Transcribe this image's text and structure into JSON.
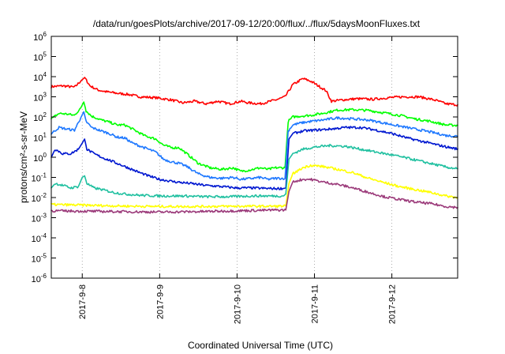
{
  "chart_data": {
    "type": "line",
    "title": "/data/run/goesPlots/archive/2017-09-12/20:00/flux/../flux/5daysMoonFluxes.txt",
    "xlabel": "Coordinated Universal Time (UTC)",
    "ylabel": "protons/cm²-s-sr-MeV",
    "x_range_days": [
      6.6,
      11.85
    ],
    "x_ticks": [
      {
        "value": 7,
        "label": "2017-9-8"
      },
      {
        "value": 8,
        "label": "2017-9-9"
      },
      {
        "value": 9,
        "label": "2017-9-10"
      },
      {
        "value": 10,
        "label": "2017-9-11"
      },
      {
        "value": 11,
        "label": "2017-9-12"
      }
    ],
    "y_scale": "log",
    "ylim_exp": [
      -6,
      6
    ],
    "y_ticks": [
      "10^-6",
      "10^-5",
      "10^-4",
      "10^-3",
      "10^-2",
      "10^-1",
      "10^0",
      "10^1",
      "10^2",
      "10^3",
      "10^4",
      "10^5",
      "10^6"
    ],
    "grid": true,
    "series": [
      {
        "color": "#ff0000",
        "points": [
          [
            6.6,
            3200.0
          ],
          [
            6.75,
            3500.0
          ],
          [
            6.9,
            3000.0
          ],
          [
            6.98,
            6000.0
          ],
          [
            7.03,
            9000.0
          ],
          [
            7.1,
            3500.0
          ],
          [
            7.2,
            2200.0
          ],
          [
            7.3,
            1800.0
          ],
          [
            7.45,
            1500.0
          ],
          [
            7.6,
            1300.0
          ],
          [
            7.75,
            1000.0
          ],
          [
            7.95,
            900.0
          ],
          [
            8.15,
            700.0
          ],
          [
            8.3,
            500.0
          ],
          [
            8.45,
            600.0
          ],
          [
            8.6,
            450.0
          ],
          [
            8.75,
            600.0
          ],
          [
            8.9,
            450.0
          ],
          [
            9.05,
            600.0
          ],
          [
            9.15,
            500.0
          ],
          [
            9.3,
            450.0
          ],
          [
            9.5,
            700.0
          ],
          [
            9.62,
            1000.0
          ],
          [
            9.72,
            4000.0
          ],
          [
            9.85,
            8000.0
          ],
          [
            9.95,
            6000.0
          ],
          [
            10.05,
            3500.0
          ],
          [
            10.15,
            2000.0
          ],
          [
            10.22,
            600.0
          ],
          [
            10.35,
            700.0
          ],
          [
            10.55,
            800.0
          ],
          [
            10.75,
            750.0
          ],
          [
            10.95,
            900.0
          ],
          [
            11.15,
            1000.0
          ],
          [
            11.35,
            1000.0
          ],
          [
            11.55,
            700.0
          ],
          [
            11.7,
            450.0
          ],
          [
            11.85,
            400.0
          ]
        ]
      },
      {
        "color": "#00ff00",
        "points": [
          [
            6.6,
            80
          ],
          [
            6.7,
            150
          ],
          [
            6.8,
            140
          ],
          [
            6.9,
            120
          ],
          [
            6.98,
            280
          ],
          [
            7.02,
            550
          ],
          [
            7.05,
            200
          ],
          [
            7.12,
            110
          ],
          [
            7.25,
            70
          ],
          [
            7.35,
            55
          ],
          [
            7.45,
            40
          ],
          [
            7.55,
            40
          ],
          [
            7.65,
            25
          ],
          [
            7.8,
            12
          ],
          [
            7.95,
            8
          ],
          [
            8.05,
            4
          ],
          [
            8.15,
            3
          ],
          [
            8.25,
            3
          ],
          [
            8.35,
            1.5
          ],
          [
            8.5,
            0.5
          ],
          [
            8.65,
            0.3
          ],
          [
            8.8,
            0.25
          ],
          [
            8.95,
            0.3
          ],
          [
            9.05,
            0.2
          ],
          [
            9.2,
            0.25
          ],
          [
            9.3,
            0.3
          ],
          [
            9.4,
            0.25
          ],
          [
            9.5,
            0.3
          ],
          [
            9.62,
            0.3
          ],
          [
            9.66,
            60
          ],
          [
            9.72,
            100
          ],
          [
            9.82,
            110
          ],
          [
            9.95,
            120
          ],
          [
            10.1,
            150
          ],
          [
            10.3,
            220
          ],
          [
            10.5,
            230
          ],
          [
            10.7,
            210
          ],
          [
            10.9,
            160
          ],
          [
            11.1,
            120
          ],
          [
            11.3,
            80
          ],
          [
            11.5,
            60
          ],
          [
            11.7,
            40
          ],
          [
            11.85,
            38
          ]
        ]
      },
      {
        "color": "#1e78ff",
        "points": [
          [
            6.6,
            15
          ],
          [
            6.7,
            30
          ],
          [
            6.8,
            25
          ],
          [
            6.9,
            22
          ],
          [
            6.98,
            90
          ],
          [
            7.02,
            180
          ],
          [
            7.05,
            60
          ],
          [
            7.12,
            30
          ],
          [
            7.25,
            20
          ],
          [
            7.35,
            15
          ],
          [
            7.45,
            10
          ],
          [
            7.55,
            9
          ],
          [
            7.65,
            5
          ],
          [
            7.8,
            3
          ],
          [
            7.95,
            1.8
          ],
          [
            8.05,
            0.8
          ],
          [
            8.15,
            0.6
          ],
          [
            8.25,
            0.5
          ],
          [
            8.35,
            0.35
          ],
          [
            8.5,
            0.15
          ],
          [
            8.65,
            0.1
          ],
          [
            8.8,
            0.09
          ],
          [
            8.95,
            0.1
          ],
          [
            9.05,
            0.08
          ],
          [
            9.2,
            0.09
          ],
          [
            9.3,
            0.1
          ],
          [
            9.4,
            0.08
          ],
          [
            9.5,
            0.09
          ],
          [
            9.62,
            0.09
          ],
          [
            9.66,
            20
          ],
          [
            9.72,
            40
          ],
          [
            9.82,
            50
          ],
          [
            9.95,
            60
          ],
          [
            10.1,
            70
          ],
          [
            10.3,
            90
          ],
          [
            10.5,
            80
          ],
          [
            10.7,
            70
          ],
          [
            10.9,
            50
          ],
          [
            11.1,
            35
          ],
          [
            11.3,
            25
          ],
          [
            11.5,
            18
          ],
          [
            11.7,
            12
          ],
          [
            11.85,
            11
          ]
        ]
      },
      {
        "color": "#0018d0",
        "points": [
          [
            6.6,
            1.0
          ],
          [
            6.65,
            2.5
          ],
          [
            6.75,
            1.5
          ],
          [
            6.85,
            1.5
          ],
          [
            6.95,
            2.5
          ],
          [
            7.0,
            5
          ],
          [
            7.03,
            8
          ],
          [
            7.06,
            2.5
          ],
          [
            7.15,
            1.5
          ],
          [
            7.25,
            1.0
          ],
          [
            7.4,
            0.6
          ],
          [
            7.55,
            0.35
          ],
          [
            7.7,
            0.2
          ],
          [
            7.85,
            0.12
          ],
          [
            8.0,
            0.08
          ],
          [
            8.2,
            0.06
          ],
          [
            8.4,
            0.05
          ],
          [
            8.6,
            0.04
          ],
          [
            8.8,
            0.035
          ],
          [
            9.0,
            0.03
          ],
          [
            9.2,
            0.03
          ],
          [
            9.4,
            0.028
          ],
          [
            9.6,
            0.028
          ],
          [
            9.63,
            0.03
          ],
          [
            9.67,
            8
          ],
          [
            9.72,
            15
          ],
          [
            9.85,
            20
          ],
          [
            10.0,
            22
          ],
          [
            10.2,
            25
          ],
          [
            10.4,
            30
          ],
          [
            10.6,
            30
          ],
          [
            10.8,
            22
          ],
          [
            11.0,
            15
          ],
          [
            11.2,
            9
          ],
          [
            11.4,
            6
          ],
          [
            11.6,
            4
          ],
          [
            11.75,
            3
          ],
          [
            11.85,
            2.6
          ]
        ]
      },
      {
        "color": "#20c0a0",
        "points": [
          [
            6.6,
            0.03
          ],
          [
            6.65,
            0.05
          ],
          [
            6.75,
            0.04
          ],
          [
            6.85,
            0.03
          ],
          [
            6.95,
            0.035
          ],
          [
            7.0,
            0.1
          ],
          [
            7.03,
            0.12
          ],
          [
            7.06,
            0.05
          ],
          [
            7.15,
            0.03
          ],
          [
            7.25,
            0.025
          ],
          [
            7.4,
            0.018
          ],
          [
            7.55,
            0.015
          ],
          [
            7.75,
            0.013
          ],
          [
            8.0,
            0.012
          ],
          [
            8.3,
            0.012
          ],
          [
            8.6,
            0.011
          ],
          [
            8.9,
            0.011
          ],
          [
            9.2,
            0.012
          ],
          [
            9.4,
            0.012
          ],
          [
            9.6,
            0.012
          ],
          [
            9.63,
            0.015
          ],
          [
            9.67,
            0.8
          ],
          [
            9.72,
            1.5
          ],
          [
            9.85,
            2.5
          ],
          [
            10.0,
            3.2
          ],
          [
            10.2,
            3.8
          ],
          [
            10.4,
            3.5
          ],
          [
            10.6,
            2.5
          ],
          [
            10.8,
            1.8
          ],
          [
            11.0,
            1.3
          ],
          [
            11.2,
            0.9
          ],
          [
            11.4,
            0.6
          ],
          [
            11.6,
            0.4
          ],
          [
            11.75,
            0.3
          ],
          [
            11.85,
            0.27
          ]
        ]
      },
      {
        "color": "#ffff00",
        "points": [
          [
            6.6,
            0.0045
          ],
          [
            7.0,
            0.0042
          ],
          [
            7.5,
            0.0038
          ],
          [
            8.0,
            0.0036
          ],
          [
            8.5,
            0.0036
          ],
          [
            9.0,
            0.0037
          ],
          [
            9.5,
            0.0037
          ],
          [
            9.63,
            0.0038
          ],
          [
            9.67,
            0.05
          ],
          [
            9.72,
            0.15
          ],
          [
            9.85,
            0.3
          ],
          [
            9.95,
            0.4
          ],
          [
            10.1,
            0.35
          ],
          [
            10.3,
            0.25
          ],
          [
            10.5,
            0.17
          ],
          [
            10.7,
            0.09
          ],
          [
            10.9,
            0.055
          ],
          [
            11.1,
            0.035
          ],
          [
            11.3,
            0.025
          ],
          [
            11.5,
            0.018
          ],
          [
            11.7,
            0.012
          ],
          [
            11.85,
            0.01
          ]
        ]
      },
      {
        "color": "#9b3a7a",
        "points": [
          [
            6.6,
            0.0022
          ],
          [
            7.0,
            0.0021
          ],
          [
            7.5,
            0.002
          ],
          [
            8.0,
            0.0019
          ],
          [
            8.5,
            0.002
          ],
          [
            9.0,
            0.0022
          ],
          [
            9.5,
            0.0024
          ],
          [
            9.63,
            0.0024
          ],
          [
            9.67,
            0.02
          ],
          [
            9.72,
            0.06
          ],
          [
            9.85,
            0.08
          ],
          [
            9.95,
            0.08
          ],
          [
            10.1,
            0.06
          ],
          [
            10.3,
            0.045
          ],
          [
            10.5,
            0.03
          ],
          [
            10.7,
            0.018
          ],
          [
            10.9,
            0.011
          ],
          [
            11.1,
            0.008
          ],
          [
            11.3,
            0.006
          ],
          [
            11.5,
            0.005
          ],
          [
            11.7,
            0.0036
          ],
          [
            11.85,
            0.0032
          ]
        ]
      }
    ]
  }
}
